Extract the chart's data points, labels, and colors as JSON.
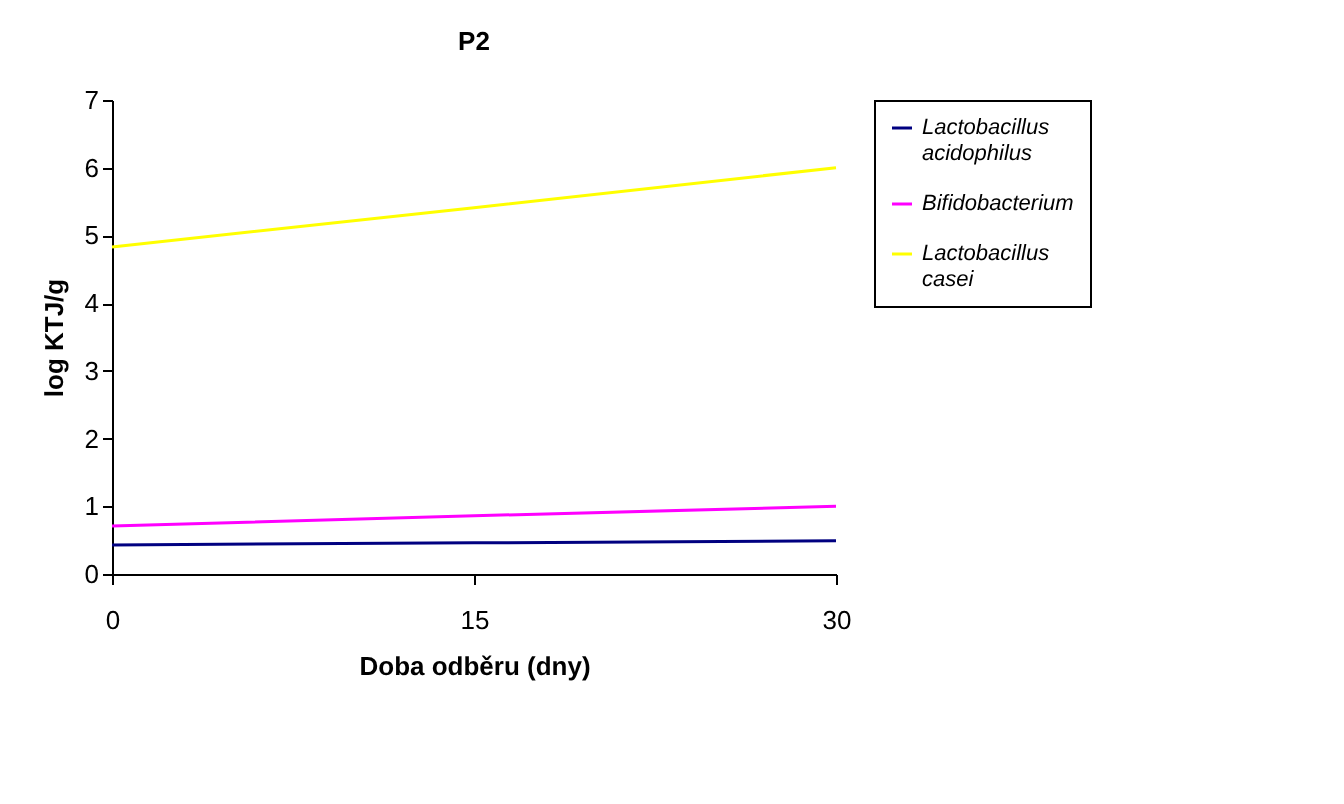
{
  "chart_data": {
    "type": "line",
    "title": "P2",
    "xlabel": "Doba odběru (dny)",
    "ylabel": "log KTJ/g",
    "x": [
      0,
      15,
      30
    ],
    "series": [
      {
        "name": "Lactobacillus acidophilus",
        "color": "#000080",
        "values": [
          0.43,
          0.46,
          0.49
        ]
      },
      {
        "name": "Bifidobacterium",
        "color": "#ff00ff",
        "values": [
          0.71,
          0.86,
          1.0
        ]
      },
      {
        "name": "Lactobacillus casei",
        "color": "#ffff00",
        "values": [
          4.83,
          5.41,
          6.0
        ]
      }
    ],
    "xlim": [
      0,
      30
    ],
    "xticks": [
      0,
      15,
      30
    ],
    "ylim": [
      0,
      7
    ],
    "yticks": [
      0,
      1,
      2,
      3,
      4,
      5,
      6,
      7
    ],
    "grid": false,
    "legend": "right",
    "marker": "none",
    "line_style": "solid"
  }
}
